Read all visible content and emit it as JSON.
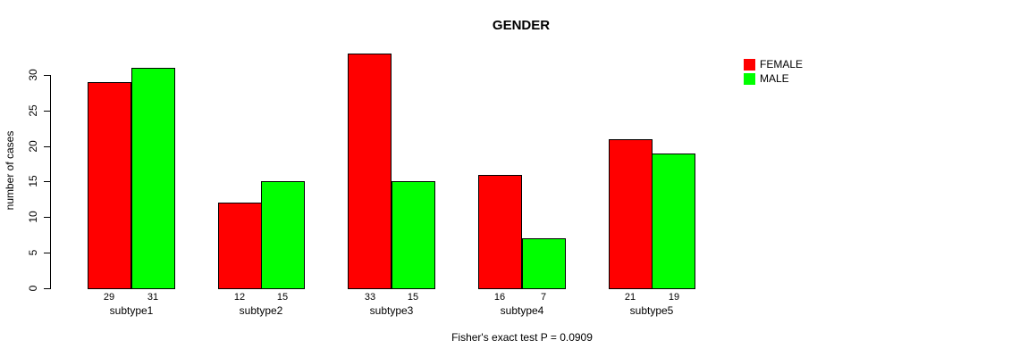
{
  "chart_data": {
    "type": "bar",
    "title": "GENDER",
    "ylabel": "number of cases",
    "xlabel": "",
    "caption": "Fisher's exact test P = 0.0909",
    "categories": [
      "subtype1",
      "subtype2",
      "subtype3",
      "subtype4",
      "subtype5"
    ],
    "series": [
      {
        "name": "FEMALE",
        "color": "#ff0000",
        "values": [
          29,
          12,
          33,
          16,
          21
        ]
      },
      {
        "name": "MALE",
        "color": "#00ff00",
        "values": [
          31,
          15,
          15,
          7,
          19
        ]
      }
    ],
    "bar_border_color": "#000000",
    "yticks": [
      0,
      5,
      10,
      15,
      20,
      25,
      30
    ],
    "ylim": [
      0,
      33
    ],
    "grid": false,
    "legend_position": "top-right",
    "show_value_labels": true
  }
}
